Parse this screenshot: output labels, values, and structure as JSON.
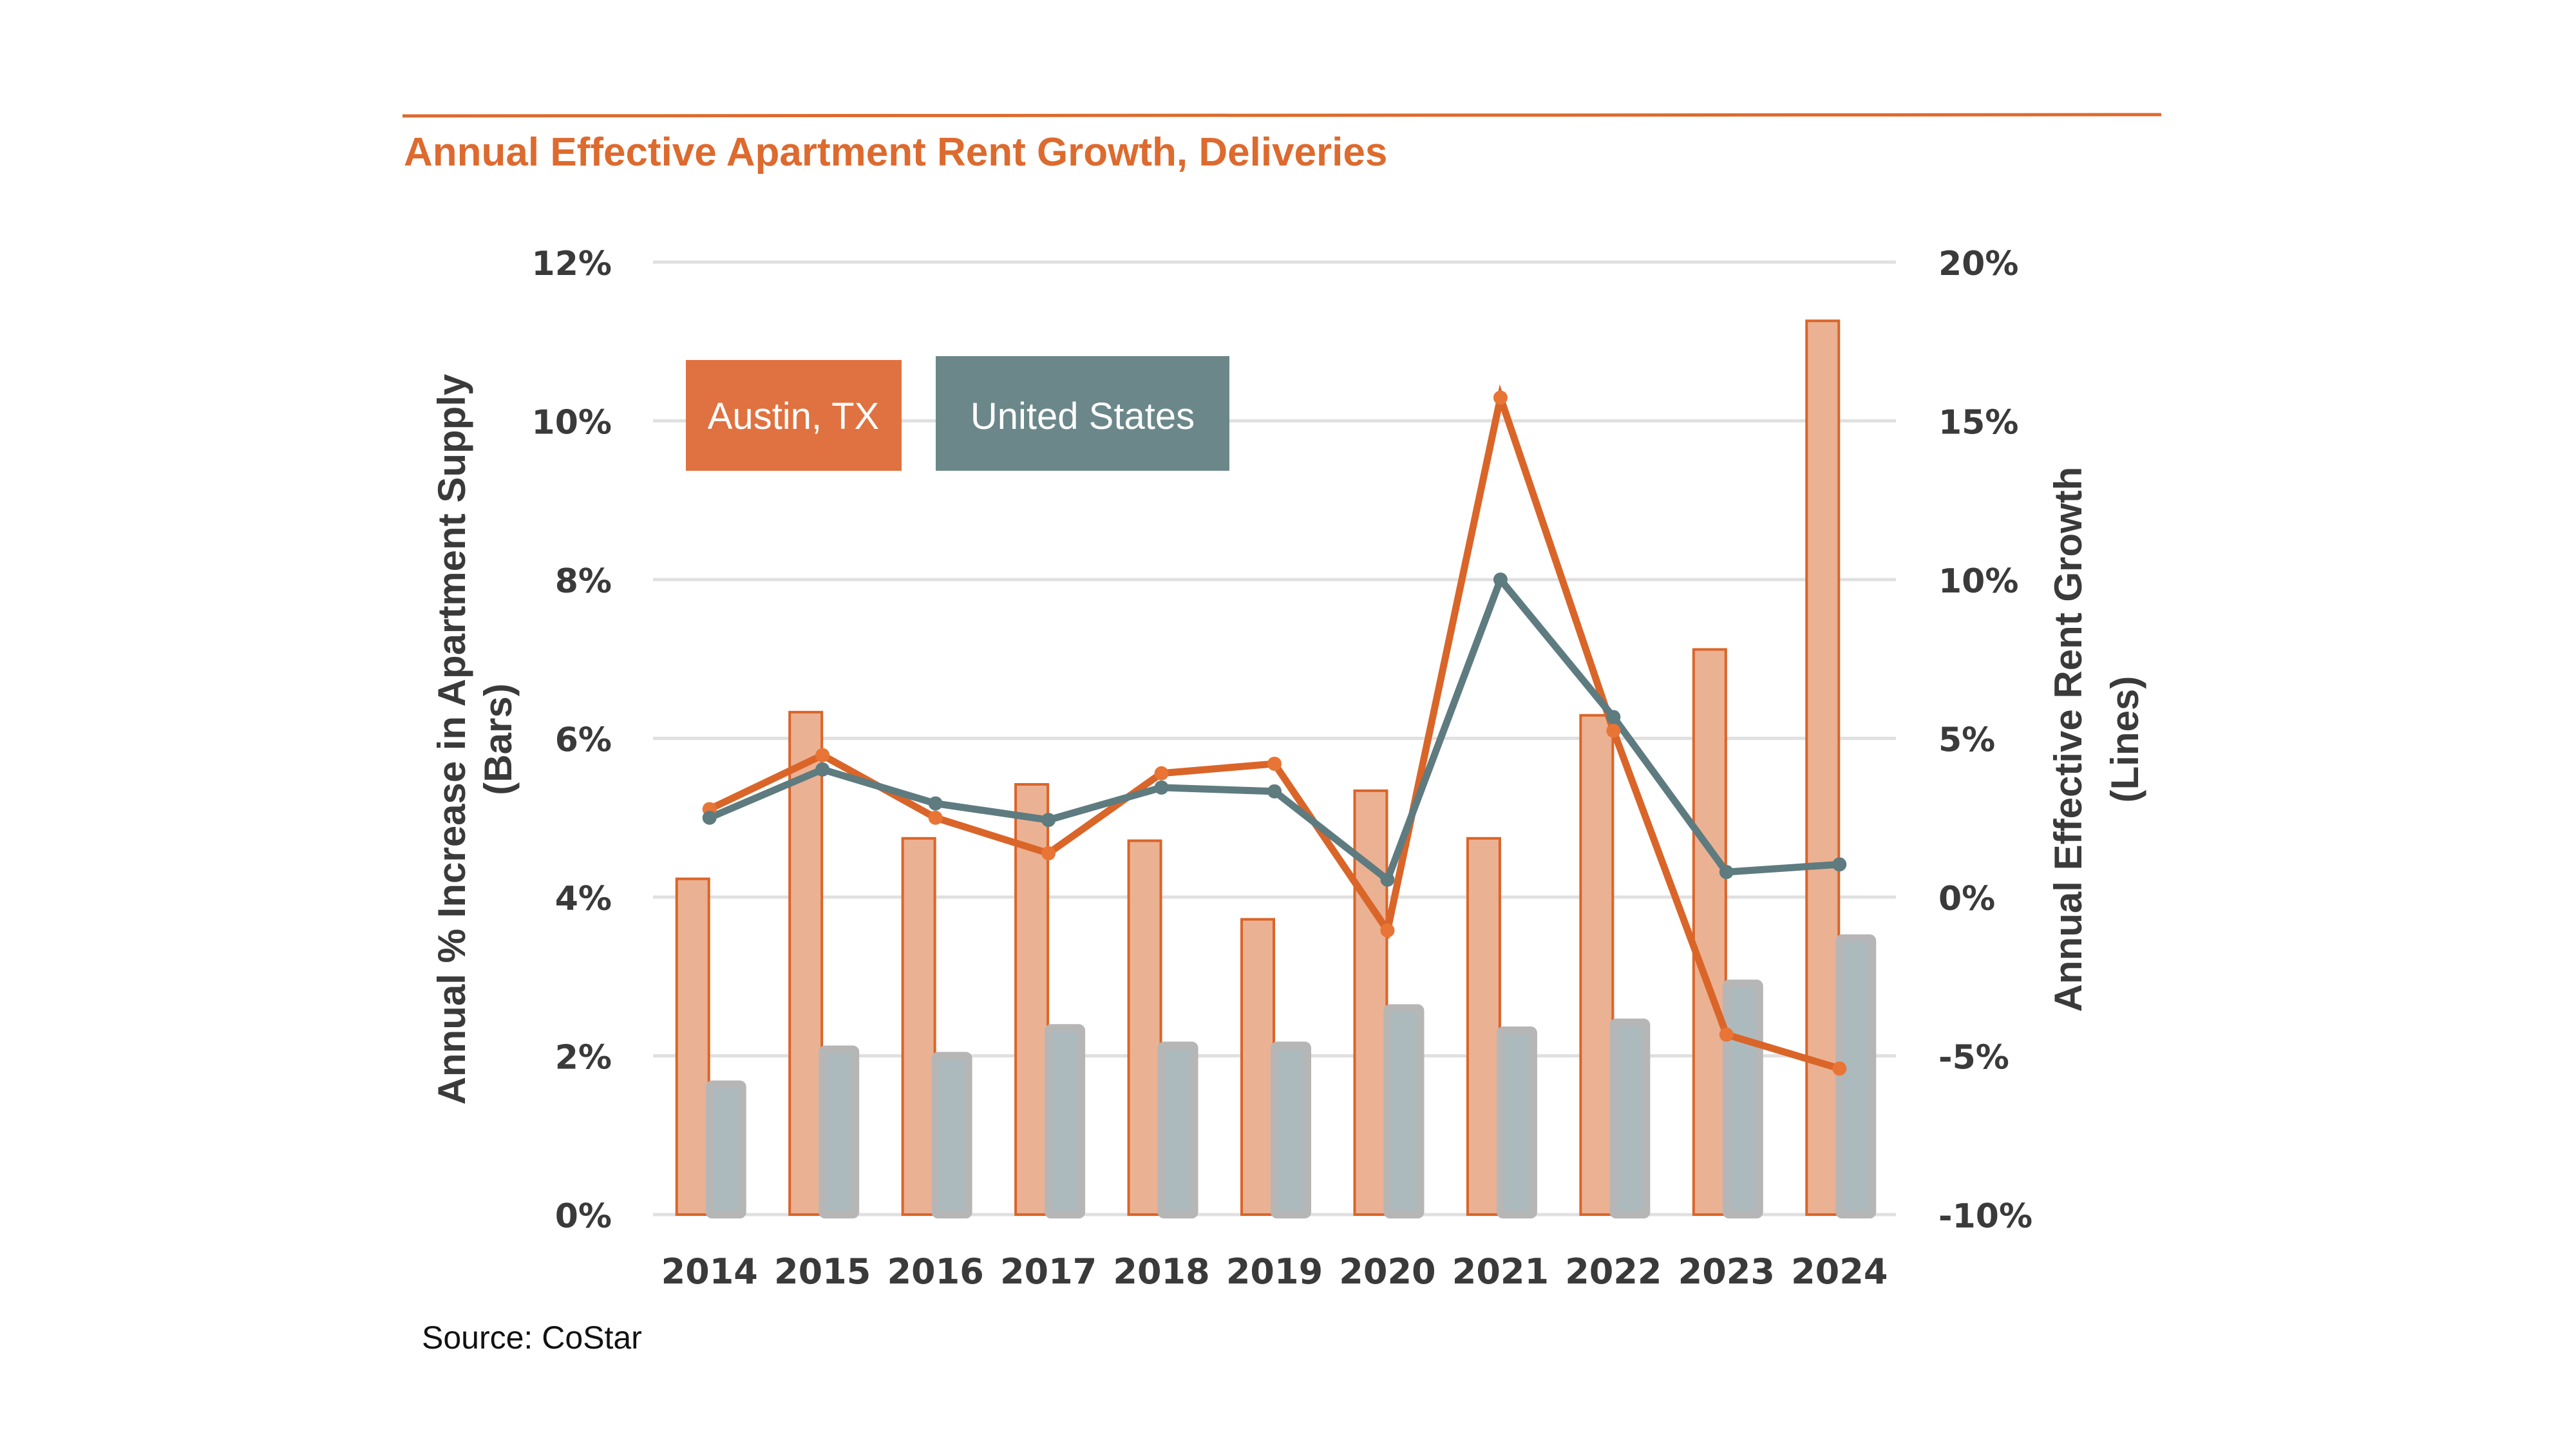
{
  "chart_data": {
    "type": "bar",
    "title": "Annual Effective Apartment Rent Growth, Deliveries",
    "source": "Source: CoStar",
    "categories": [
      "2014",
      "2015",
      "2016",
      "2017",
      "2018",
      "2019",
      "2020",
      "2021",
      "2022",
      "2023",
      "2024"
    ],
    "y_left": {
      "label_line1": "Annual % Increase in Apartment Supply",
      "label_line2": "(Bars)",
      "range": [
        0,
        12
      ],
      "ticks": [
        0,
        2,
        4,
        6,
        8,
        10,
        12
      ],
      "tick_labels": [
        "0%",
        "2%",
        "4%",
        "6%",
        "8%",
        "10%",
        "12%"
      ]
    },
    "y_right": {
      "label_line1": "Annual Effective Rent Growth",
      "label_line2": "(Lines)",
      "range": [
        -10,
        20
      ],
      "ticks": [
        -10,
        -5,
        0,
        5,
        10,
        15,
        20
      ],
      "tick_labels": [
        "-10%",
        "-5%",
        "0%",
        "5%",
        "10%",
        "15%",
        "20%"
      ]
    },
    "grid": true,
    "legend": {
      "placement": "top-left",
      "items": [
        {
          "label": "Austin, TX",
          "color": "#DF7240"
        },
        {
          "label": "United States",
          "color": "#6B878A"
        }
      ]
    },
    "bar_series": [
      {
        "name": "Austin, TX supply",
        "axis": "left",
        "fill": "#EBB193",
        "stroke": "#DA6529",
        "values": [
          4.23,
          6.33,
          4.74,
          5.42,
          4.71,
          3.72,
          5.34,
          4.74,
          6.29,
          7.12,
          11.26
        ]
      },
      {
        "name": "United States supply",
        "axis": "left",
        "fill": "#ACBABE",
        "stroke": "#B6B6B6",
        "values": [
          1.69,
          2.13,
          2.05,
          2.4,
          2.18,
          2.18,
          2.65,
          2.37,
          2.47,
          2.96,
          3.53
        ]
      }
    ],
    "line_series": [
      {
        "name": "Austin, TX rent growth",
        "axis": "right",
        "color": "#DA6529",
        "marker": "#E87535",
        "values": [
          2.77,
          4.47,
          2.5,
          1.38,
          3.9,
          4.2,
          -1.05,
          15.73,
          5.24,
          -4.33,
          -5.4
        ]
      },
      {
        "name": "United States rent growth",
        "axis": "right",
        "color": "#5E7B80",
        "marker": "#5E7B80",
        "values": [
          2.5,
          4.02,
          2.95,
          2.43,
          3.45,
          3.33,
          0.55,
          10.0,
          5.67,
          0.79,
          1.03
        ]
      }
    ]
  }
}
